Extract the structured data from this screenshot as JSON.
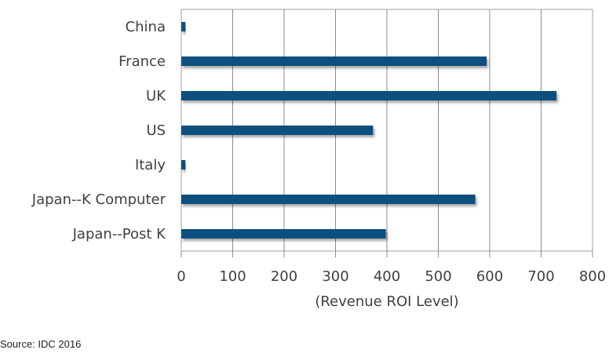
{
  "chart_data": {
    "type": "bar",
    "orientation": "horizontal",
    "categories": [
      "China",
      "France",
      "UK",
      "US",
      "Italy",
      "Japan--K Computer",
      "Japan--Post K"
    ],
    "values": [
      8,
      594,
      730,
      373,
      8,
      572,
      398
    ],
    "xlabel": "(Revenue ROI Level)",
    "ylabel": "",
    "xlim": [
      0,
      800
    ],
    "xticks": [
      0,
      100,
      200,
      300,
      400,
      500,
      600,
      700,
      800
    ],
    "grid": "vertical",
    "legend": "none",
    "colors": {
      "bar": "#0f4f7f",
      "grid": "#8c8c8c",
      "frame": "#a0a0a0"
    }
  },
  "source": "Source: IDC 2016"
}
